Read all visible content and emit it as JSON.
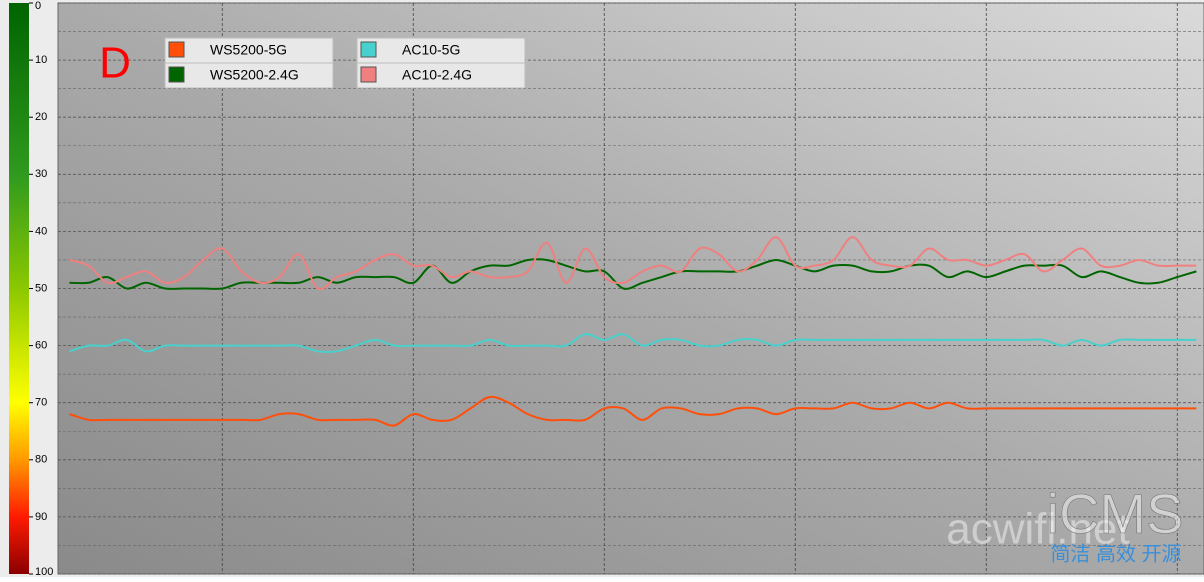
{
  "chart_data": {
    "type": "line",
    "title": "D",
    "watermark": [
      "acwifi.net",
      "iCMS",
      "简洁 高效 开源"
    ],
    "x": [
      -8,
      -7,
      -6,
      -5,
      -4,
      -3,
      -2,
      -1,
      0,
      1,
      2,
      3,
      4,
      5,
      6,
      7,
      8,
      9,
      10,
      11,
      12,
      13,
      14,
      15,
      16,
      17,
      18,
      19,
      20,
      21,
      22,
      23,
      24,
      25,
      26,
      27,
      28,
      29,
      30,
      31,
      32,
      33,
      34,
      35,
      36,
      37,
      38,
      39,
      40,
      41,
      42,
      43,
      44,
      45,
      46,
      47,
      48,
      49,
      50,
      51
    ],
    "xlim": [
      -8.6,
      51.4
    ],
    "xticks": [
      0,
      10,
      20,
      30,
      40,
      50
    ],
    "ylim": [
      0,
      100
    ],
    "y_inverted": true,
    "yticks": [
      0,
      10,
      20,
      30,
      40,
      50,
      60,
      70,
      80,
      90,
      100
    ],
    "yminor": [
      5,
      15,
      25,
      35,
      45,
      55,
      65,
      75,
      85,
      95
    ],
    "grid": true,
    "series": [
      {
        "name": "WS5200-5G",
        "color": "#ff4f0a",
        "values": [
          72,
          73,
          73,
          73,
          73,
          73,
          73,
          73,
          73,
          73,
          73,
          72,
          72,
          73,
          73,
          73,
          73,
          74,
          72,
          73,
          73,
          71,
          69,
          70,
          72,
          73,
          73,
          73,
          71,
          71,
          73,
          71,
          71,
          72,
          72,
          71,
          71,
          72,
          71,
          71,
          71,
          70,
          71,
          71,
          70,
          71,
          70,
          71,
          71,
          71,
          71,
          71,
          71,
          71,
          71,
          71,
          71,
          71,
          71,
          71
        ]
      },
      {
        "name": "WS5200-2.4G",
        "color": "#006400",
        "values": [
          49,
          49,
          48,
          50,
          49,
          50,
          50,
          50,
          50,
          49,
          49,
          49,
          49,
          48,
          49,
          48,
          48,
          48,
          49,
          46,
          49,
          47,
          46,
          46,
          45,
          45,
          46,
          47,
          47,
          50,
          49,
          48,
          47,
          47,
          47,
          47,
          46,
          45,
          46,
          47,
          46,
          46,
          47,
          47,
          46,
          46,
          48,
          47,
          48,
          47,
          46,
          46,
          46,
          48,
          47,
          48,
          49,
          49,
          48,
          47
        ]
      },
      {
        "name": "AC10-5G",
        "color": "#48d1cc",
        "values": [
          61,
          60,
          60,
          59,
          61,
          60,
          60,
          60,
          60,
          60,
          60,
          60,
          60,
          61,
          61,
          60,
          59,
          60,
          60,
          60,
          60,
          60,
          59,
          60,
          60,
          60,
          60,
          58,
          59,
          58,
          60,
          59,
          59,
          60,
          60,
          59,
          59,
          60,
          59,
          59,
          59,
          59,
          59,
          59,
          59,
          59,
          59,
          59,
          59,
          59,
          59,
          59,
          60,
          59,
          60,
          59,
          59,
          59,
          59,
          59
        ]
      },
      {
        "name": "AC10-2.4G",
        "color": "#f08080",
        "values": [
          45,
          46,
          49,
          48,
          47,
          49,
          48,
          45,
          43,
          47,
          49,
          48,
          44,
          50,
          48,
          47,
          45,
          44,
          46,
          46,
          48,
          47,
          48,
          48,
          47,
          42,
          49,
          43,
          48,
          49,
          47,
          46,
          47,
          43,
          44,
          47,
          45,
          41,
          46,
          46,
          45,
          41,
          45,
          46,
          46,
          43,
          45,
          45,
          46,
          45,
          44,
          47,
          45,
          43,
          46,
          46,
          45,
          46,
          46,
          46
        ]
      }
    ]
  }
}
